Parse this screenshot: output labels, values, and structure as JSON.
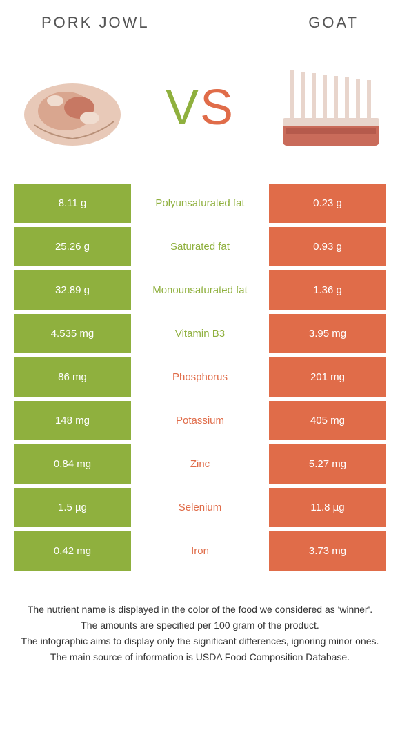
{
  "colors": {
    "green": "#8fb03e",
    "orange": "#e06c49",
    "text_dark": "#555555",
    "white": "#ffffff"
  },
  "header": {
    "left_title": "PORK JOWL",
    "right_title": "GOAT"
  },
  "vs": {
    "v": "V",
    "s": "S"
  },
  "rows": [
    {
      "left": "8.11 g",
      "label": "Polyunsaturated fat",
      "right": "0.23 g",
      "winner": "left"
    },
    {
      "left": "25.26 g",
      "label": "Saturated fat",
      "right": "0.93 g",
      "winner": "left"
    },
    {
      "left": "32.89 g",
      "label": "Monounsaturated fat",
      "right": "1.36 g",
      "winner": "left"
    },
    {
      "left": "4.535 mg",
      "label": "Vitamin B3",
      "right": "3.95 mg",
      "winner": "left"
    },
    {
      "left": "86 mg",
      "label": "Phosphorus",
      "right": "201 mg",
      "winner": "right"
    },
    {
      "left": "148 mg",
      "label": "Potassium",
      "right": "405 mg",
      "winner": "right"
    },
    {
      "left": "0.84 mg",
      "label": "Zinc",
      "right": "5.27 mg",
      "winner": "right"
    },
    {
      "left": "1.5 µg",
      "label": "Selenium",
      "right": "11.8 µg",
      "winner": "right"
    },
    {
      "left": "0.42 mg",
      "label": "Iron",
      "right": "3.73 mg",
      "winner": "right"
    }
  ],
  "footer": {
    "line1": "The nutrient name is displayed in the color of the food we considered as 'winner'.",
    "line2": "The amounts are specified per 100 gram of the product.",
    "line3": "The infographic aims to display only the significant differences, ignoring minor ones.",
    "line4": "The main source of information is USDA Food Composition Database."
  }
}
